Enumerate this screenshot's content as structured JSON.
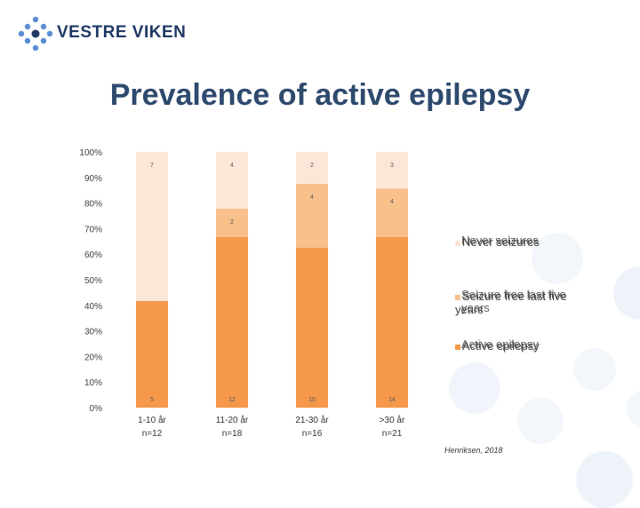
{
  "header": {
    "logo_text": "VESTRE VIKEN",
    "title": "Prevalence of active epilepsy"
  },
  "colors": {
    "active": "#f5984a",
    "seizure_free": "#f9c08c",
    "never": "#fce6d7",
    "brand_blue": "#1f3864"
  },
  "chart_data": {
    "type": "bar",
    "stacked": true,
    "normalized": true,
    "categories": [
      "1-10 år",
      "11-20 år",
      "21-30 år",
      ">30 år"
    ],
    "category_n": [
      "n=12",
      "n=18",
      "n=16",
      "n=21"
    ],
    "series": [
      {
        "name": "Active epilepsy",
        "values": [
          5,
          12,
          10,
          14
        ]
      },
      {
        "name": "Seizure free last five years",
        "values": [
          0,
          2,
          4,
          4
        ]
      },
      {
        "name": "Never seizures",
        "values": [
          7,
          4,
          2,
          3
        ]
      }
    ],
    "y_ticks": [
      "0%",
      "10%",
      "20%",
      "30%",
      "40%",
      "50%",
      "60%",
      "70%",
      "80%",
      "90%",
      "100%"
    ],
    "ylim": [
      0,
      100
    ]
  },
  "legend": [
    {
      "label": "Never seizures",
      "ghost": "Never seizures",
      "color_key": "never"
    },
    {
      "label": "Seizure free last five years",
      "ghost": "Seizure free last five years",
      "color_key": "seizure_free"
    },
    {
      "label": "Active epilepsy",
      "ghost": "Active epilepsy",
      "color_key": "active"
    }
  ],
  "citation": "Henriksen, 2018"
}
